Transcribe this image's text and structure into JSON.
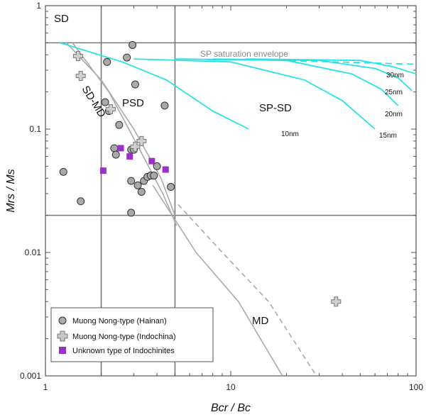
{
  "chart_data": {
    "type": "scatter",
    "title": "",
    "xlabel": "Bcr / Bc",
    "ylabel": "Mrs / Ms",
    "x_scale": "log",
    "y_scale": "log",
    "xlim": [
      1,
      100
    ],
    "ylim": [
      0.001,
      1
    ],
    "x_ticks": [
      "1",
      "10",
      "100"
    ],
    "y_ticks": [
      "0.001",
      "0.01",
      "0.1",
      "1"
    ],
    "grid": false,
    "legend_position": "bottom-left",
    "region_labels": {
      "sd": "SD",
      "psd": "PSD",
      "sd_md": "SD-MD",
      "sp_sd": "SP-SD",
      "md": "MD",
      "envelope": "SP saturation envelope"
    },
    "reference_lines": {
      "bcr_bc": [
        2,
        5
      ],
      "mrs_ms": [
        0.5,
        0.02
      ]
    },
    "sp_sd_curves": [
      {
        "label": "10nm",
        "points": [
          [
            1.2,
            0.5
          ],
          [
            2.6,
            0.35
          ],
          [
            4.5,
            0.25
          ],
          [
            8,
            0.14
          ],
          [
            12.5,
            0.1
          ]
        ]
      },
      {
        "label": "15nm",
        "points": [
          [
            3,
            0.37
          ],
          [
            10,
            0.35
          ],
          [
            25,
            0.25
          ],
          [
            40,
            0.17
          ],
          [
            60,
            0.1
          ]
        ]
      },
      {
        "label": "20nm",
        "points": [
          [
            5,
            0.37
          ],
          [
            20,
            0.36
          ],
          [
            45,
            0.28
          ],
          [
            65,
            0.21
          ],
          [
            80,
            0.155
          ]
        ]
      },
      {
        "label": "25nm",
        "points": [
          [
            8,
            0.37
          ],
          [
            30,
            0.36
          ],
          [
            60,
            0.31
          ],
          [
            80,
            0.26
          ],
          [
            95,
            0.205
          ]
        ]
      },
      {
        "label": "30nm",
        "points": [
          [
            12,
            0.37
          ],
          [
            50,
            0.36
          ],
          [
            75,
            0.32
          ],
          [
            100,
            0.28
          ]
        ]
      }
    ],
    "envelope": {
      "solid": [
        [
          7.5,
          0.365
        ],
        [
          14,
          0.365
        ]
      ],
      "dashed": [
        [
          14,
          0.365
        ],
        [
          100,
          0.335
        ]
      ]
    },
    "sd_md_curves": {
      "upper": [
        [
          1.3,
          0.5
        ],
        [
          2.0,
          0.25
        ],
        [
          3.0,
          0.1
        ],
        [
          4.2,
          0.04
        ],
        [
          5,
          0.02
        ]
      ],
      "lower": [
        [
          1.4,
          0.5
        ],
        [
          2.2,
          0.2
        ],
        [
          3.2,
          0.07
        ],
        [
          4.3,
          0.03
        ],
        [
          5.1,
          0.0165
        ]
      ],
      "md_solid": [
        [
          3.8,
          0.035
        ],
        [
          6.5,
          0.01
        ],
        [
          11,
          0.004
        ],
        [
          19,
          0.001
        ]
      ],
      "md_dashed": [
        [
          5.2,
          0.0245
        ],
        [
          9,
          0.01
        ],
        [
          16,
          0.004
        ],
        [
          29,
          0.001
        ]
      ]
    },
    "series": [
      {
        "name": "Muong Nong-type (Hainan)",
        "marker": "circle",
        "color": "#a9a9a9",
        "points": [
          [
            1.25,
            0.045
          ],
          [
            1.55,
            0.026
          ],
          [
            2.15,
            0.35
          ],
          [
            2.1,
            0.165
          ],
          [
            2.2,
            0.14
          ],
          [
            2.5,
            0.108
          ],
          [
            2.35,
            0.07
          ],
          [
            2.4,
            0.062
          ],
          [
            2.75,
            0.38
          ],
          [
            2.95,
            0.48
          ],
          [
            3.05,
            0.23
          ],
          [
            4.4,
            0.155
          ],
          [
            2.9,
            0.068
          ],
          [
            3.0,
            0.068
          ],
          [
            2.9,
            0.038
          ],
          [
            3.15,
            0.035
          ],
          [
            3.3,
            0.031
          ],
          [
            3.4,
            0.038
          ],
          [
            3.55,
            0.041
          ],
          [
            3.7,
            0.042
          ],
          [
            3.85,
            0.042
          ],
          [
            4.0,
            0.05
          ],
          [
            2.9,
            0.021
          ],
          [
            4.75,
            0.034
          ]
        ]
      },
      {
        "name": "Muong Nong-type (Indochina)",
        "marker": "cross",
        "color": "#909090",
        "points": [
          [
            1.5,
            0.39
          ],
          [
            1.55,
            0.27
          ],
          [
            2.25,
            0.145
          ],
          [
            3.3,
            0.08
          ],
          [
            3.05,
            0.072
          ],
          [
            37,
            0.004
          ]
        ]
      },
      {
        "name": "Unknown type of Indochinites",
        "marker": "square",
        "color": "#9b30c8",
        "points": [
          [
            2.05,
            0.046
          ],
          [
            2.55,
            0.07
          ],
          [
            2.85,
            0.06
          ],
          [
            3.75,
            0.055
          ],
          [
            4.45,
            0.047
          ]
        ]
      }
    ]
  }
}
